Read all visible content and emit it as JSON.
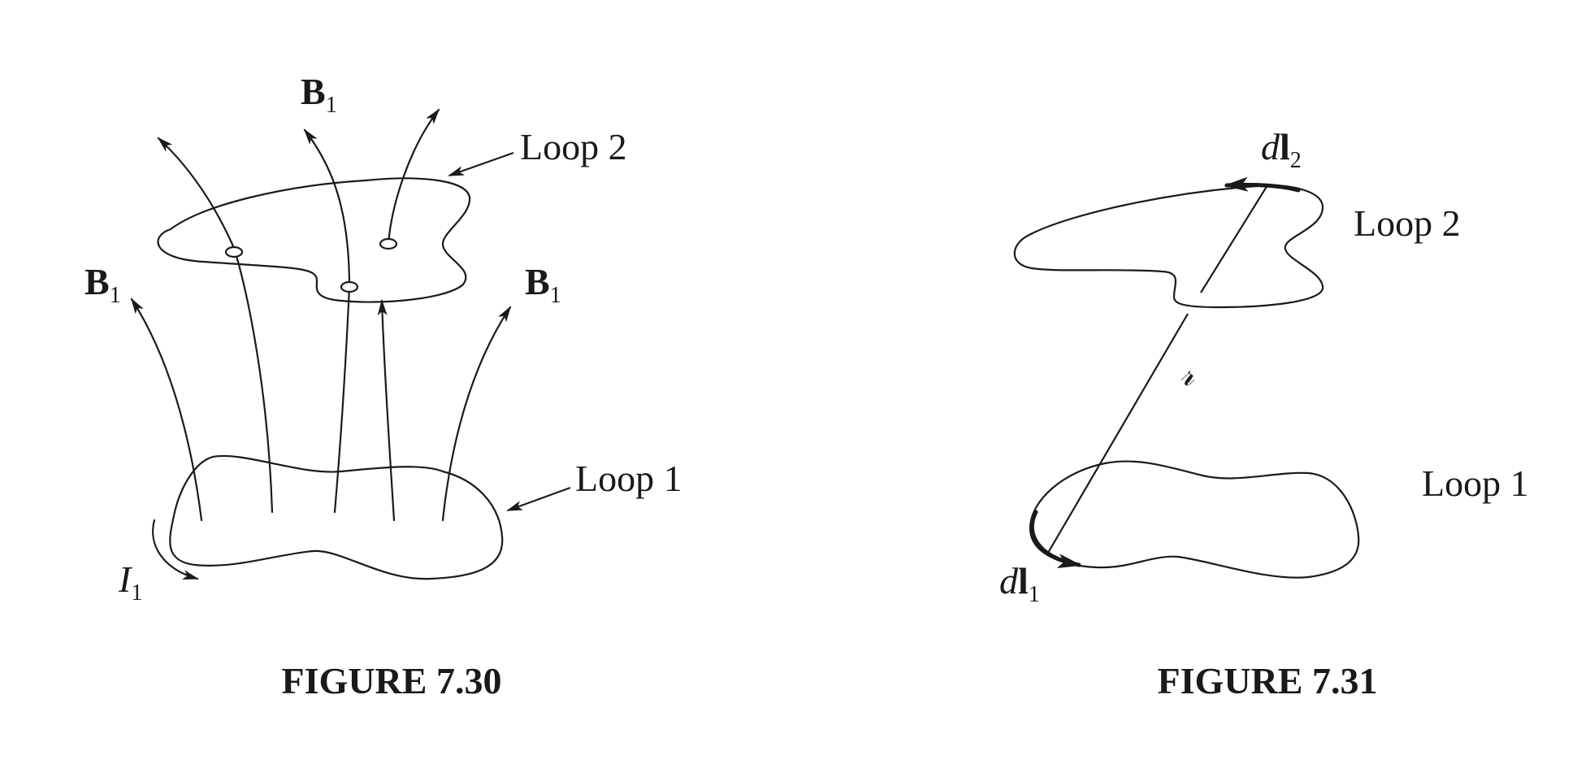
{
  "figure_730": {
    "caption": "FIGURE 7.30",
    "field_label_top": "B",
    "field_label_left": "B",
    "field_label_right": "B",
    "field_label_sub": "1",
    "loop2_label": "Loop 2",
    "loop1_label": "Loop 1",
    "current_label": "I",
    "current_sub": "1"
  },
  "figure_731": {
    "caption": "FIGURE 7.31",
    "dl2_d": "d",
    "dl2_l": "l",
    "dl2_sub": "2",
    "dl1_d": "d",
    "dl1_l": "l",
    "dl1_sub": "1",
    "separation_label": "𝓇",
    "loop2_label": "Loop 2",
    "loop1_label": "Loop 1"
  }
}
